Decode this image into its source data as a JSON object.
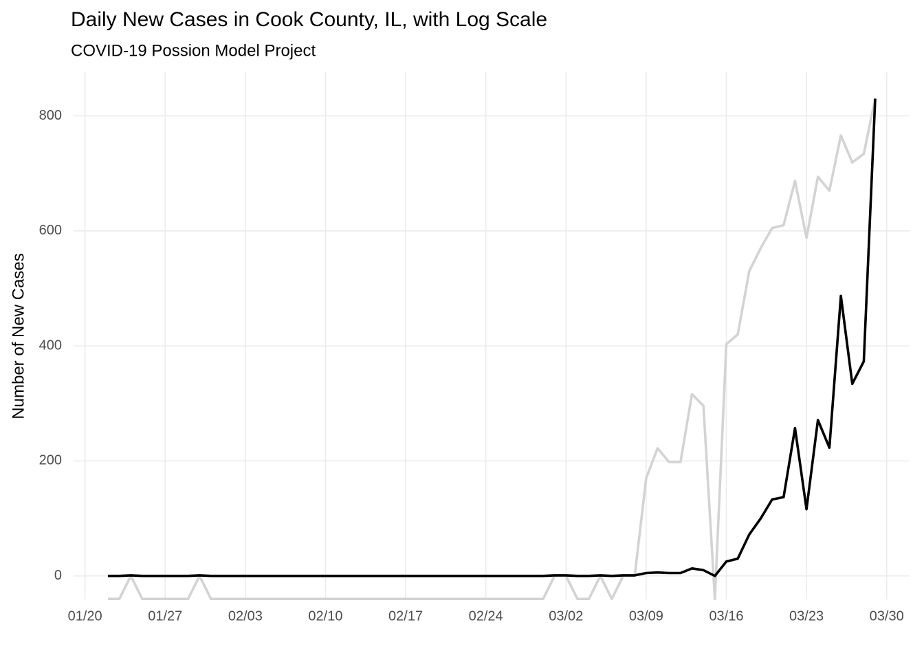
{
  "chart_data": {
    "type": "line",
    "title": "Daily New Cases in Cook County, IL, with Log Scale",
    "subtitle": "COVID-19 Possion Model Project",
    "y_label": "Number of New Cases",
    "x": [
      "01/22",
      "01/23",
      "01/24",
      "01/25",
      "01/26",
      "01/27",
      "01/28",
      "01/29",
      "01/30",
      "01/31",
      "02/01",
      "02/02",
      "02/03",
      "02/04",
      "02/05",
      "02/06",
      "02/07",
      "02/08",
      "02/09",
      "02/10",
      "02/11",
      "02/12",
      "02/13",
      "02/14",
      "02/15",
      "02/16",
      "02/17",
      "02/18",
      "02/19",
      "02/20",
      "02/21",
      "02/22",
      "02/23",
      "02/24",
      "02/25",
      "02/26",
      "02/27",
      "02/28",
      "02/29",
      "03/01",
      "03/02",
      "03/03",
      "03/04",
      "03/05",
      "03/06",
      "03/07",
      "03/08",
      "03/09",
      "03/10",
      "03/11",
      "03/12",
      "03/13",
      "03/14",
      "03/15",
      "03/16",
      "03/17",
      "03/18",
      "03/19",
      "03/20",
      "03/21",
      "03/22",
      "03/23",
      "03/24",
      "03/25",
      "03/26",
      "03/27",
      "03/28",
      "03/29"
    ],
    "series": [
      {
        "color": "#d3d3d3",
        "values": [
          -40,
          -40,
          0,
          -40,
          -40,
          -40,
          -40,
          -40,
          0,
          -40,
          -40,
          -40,
          -40,
          -40,
          -40,
          -40,
          -40,
          -40,
          -40,
          -40,
          -40,
          -40,
          -40,
          -40,
          -40,
          -40,
          -40,
          -40,
          -40,
          -40,
          -40,
          -40,
          -40,
          -40,
          -40,
          -40,
          -40,
          -40,
          -40,
          0,
          0,
          -40,
          -40,
          0,
          -40,
          0,
          0,
          170,
          222,
          198,
          198,
          316,
          296,
          -40,
          403,
          420,
          530,
          570,
          605,
          610,
          687,
          588,
          694,
          670,
          766,
          719,
          734,
          830
        ]
      },
      {
        "color": "#000000",
        "values": [
          0,
          0,
          1,
          0,
          0,
          0,
          0,
          0,
          1,
          0,
          0,
          0,
          0,
          0,
          0,
          0,
          0,
          0,
          0,
          0,
          0,
          0,
          0,
          0,
          0,
          0,
          0,
          0,
          0,
          0,
          0,
          0,
          0,
          0,
          0,
          0,
          0,
          0,
          0,
          1,
          1,
          0,
          0,
          1,
          0,
          1,
          1,
          5,
          6,
          5,
          5,
          13,
          10,
          0,
          25,
          30,
          72,
          100,
          133,
          137,
          257,
          116,
          271,
          223,
          487,
          334,
          373,
          830
        ]
      }
    ],
    "xlim": [
      "01/19",
      "04/01"
    ],
    "xticks": [
      "01/20",
      "01/27",
      "02/03",
      "02/10",
      "02/17",
      "02/24",
      "03/02",
      "03/09",
      "03/16",
      "03/23",
      "03/30"
    ],
    "ylim": [
      -41,
      876
    ],
    "yticks": [
      0,
      200,
      400,
      600,
      800
    ],
    "grid": true
  }
}
